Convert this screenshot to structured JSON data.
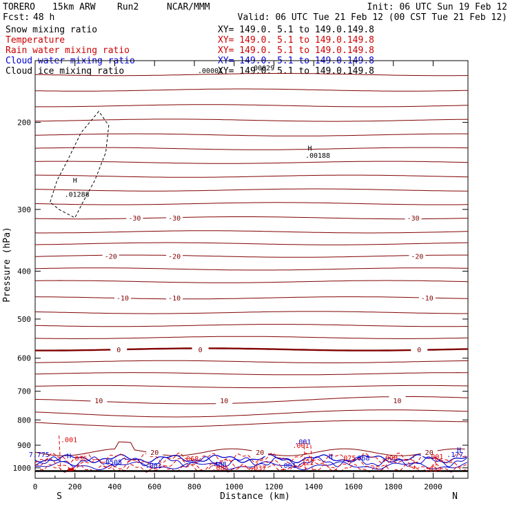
{
  "header": {
    "model": "TORERO",
    "resolution": "15km ARW",
    "run": "Run2",
    "org": "NCAR/MMM",
    "init": "Init: 06 UTC Sun 19 Feb 12",
    "fcst_label": "Fcst:",
    "fcst_value": "48 h",
    "valid": "Valid: 06 UTC Tue 21 Feb 12 (00 CST Tue 21 Feb 12)"
  },
  "fields": [
    {
      "name": "Snow mixing ratio",
      "xy": "",
      "color": "#000000"
    },
    {
      "name": "Temperature",
      "xy": "XY= 149.0.  5.1 to 149.0.149.8",
      "color": "#cc0000"
    },
    {
      "name": "Rain water mixing ratio",
      "xy": "XY= 149.0.  5.1 to 149.0.149.8",
      "color": "#cc0000"
    },
    {
      "name": "Cloud water mixing ratio",
      "xy": "XY= 149.0.  5.1 to 149.0.149.8",
      "color": "#0000cc"
    },
    {
      "name": "Cloud ice mixing ratio",
      "xy": "XY= 149.0.  5.1 to 149.0.149.8",
      "color": "#000000"
    }
  ],
  "snow_xy": "XY= 149.0.  5.1 to 149.0.149.8",
  "colors": {
    "temperature": "#800000",
    "zero_line": "#800000",
    "rain": "#dd0000",
    "cloud_water": "#0000cc",
    "cloud_ice": "#000000",
    "axis": "#000000"
  },
  "chart_data": {
    "type": "line",
    "title": "",
    "xlabel": "Distance (km)",
    "ylabel": "Pressure (hPa)",
    "xlim": [
      0,
      2175
    ],
    "ylim": [
      150,
      1050
    ],
    "y_scale": "log",
    "grid": false,
    "x_ticks": [
      0,
      200,
      400,
      600,
      800,
      1000,
      1200,
      1400,
      1600,
      1800,
      2000
    ],
    "y_ticks": [
      200,
      300,
      400,
      500,
      600,
      700,
      800,
      900,
      1000
    ],
    "end_labels": {
      "left": "S",
      "right": "N"
    },
    "temperature_isotherms": [
      {
        "temp": -30,
        "pressure": 312,
        "labels_at_km": [
          500,
          700,
          1900
        ]
      },
      {
        "temp": -20,
        "pressure": 373,
        "labels_at_km": [
          380,
          700,
          1920
        ]
      },
      {
        "temp": -10,
        "pressure": 453,
        "labels_at_km": [
          440,
          700,
          1970
        ]
      },
      {
        "temp": 0,
        "pressure": 576,
        "labels_at_km": [
          420,
          830,
          1930
        ]
      },
      {
        "temp": 10,
        "pressure": 730,
        "labels_at_km": [
          320,
          950,
          1820
        ]
      },
      {
        "temp": 20,
        "pressure": 930,
        "labels_at_km": [
          600,
          1130,
          1980
        ]
      }
    ],
    "labels_highs": [
      {
        "text": "H",
        "x": 170,
        "y": 957,
        "color": "blue"
      },
      {
        "text": "H",
        "x": 1485,
        "y": 958,
        "color": "blue"
      },
      {
        "text": "H",
        "x": 2130,
        "y": 930,
        "color": "blue"
      },
      {
        "text": "H",
        "x": 1380,
        "y": 228,
        "color": "black"
      },
      {
        "text": "H",
        "x": 200,
        "y": 265,
        "color": "black"
      }
    ],
    "value_labels": [
      {
        "text": ".00001",
        "x": 880,
        "y": 159,
        "color": "black"
      },
      {
        "text": ".00029",
        "x": 1140,
        "y": 157,
        "color": "black"
      },
      {
        "text": ".00188",
        "x": 1420,
        "y": 236,
        "color": "black"
      },
      {
        "text": ".01288",
        "x": 210,
        "y": 283,
        "color": "black"
      },
      {
        "text": ".001",
        "x": 170,
        "y": 887,
        "color": "red"
      },
      {
        "text": ".036",
        "x": 220,
        "y": 968,
        "color": "red"
      },
      {
        "text": ".0505",
        "x": 385,
        "y": 984,
        "color": "blue"
      },
      {
        "text": ".001",
        "x": 595,
        "y": 1000,
        "color": "blue"
      },
      {
        "text": ".068",
        "x": 780,
        "y": 969,
        "color": "red"
      },
      {
        "text": ".408",
        "x": 920,
        "y": 995,
        "color": "blue"
      },
      {
        "text": ".085",
        "x": 930,
        "y": 1012,
        "color": "red"
      },
      {
        "text": ".037",
        "x": 1120,
        "y": 1012,
        "color": "red"
      },
      {
        "text": ".001",
        "x": 1270,
        "y": 1000,
        "color": "blue"
      },
      {
        "text": ".122",
        "x": 1360,
        "y": 986,
        "color": "red"
      },
      {
        "text": ".001",
        "x": 1345,
        "y": 896,
        "color": "blue"
      },
      {
        "text": ".001",
        "x": 1335,
        "y": 912,
        "color": "red"
      },
      {
        "text": ".075",
        "x": 1570,
        "y": 966,
        "color": "red"
      },
      {
        "text": ".068",
        "x": 1640,
        "y": 966,
        "color": "blue"
      },
      {
        "text": ".090",
        "x": 1780,
        "y": 966,
        "color": "red"
      },
      {
        "text": ".001",
        "x": 2010,
        "y": 960,
        "color": "red"
      },
      {
        "text": ".014",
        "x": 2000,
        "y": 1018,
        "color": "red"
      },
      {
        "text": ".177",
        "x": 2110,
        "y": 951,
        "color": "blue"
      },
      {
        "text": "7.775",
        "x": 20,
        "y": 951,
        "color": "blue"
      }
    ]
  }
}
